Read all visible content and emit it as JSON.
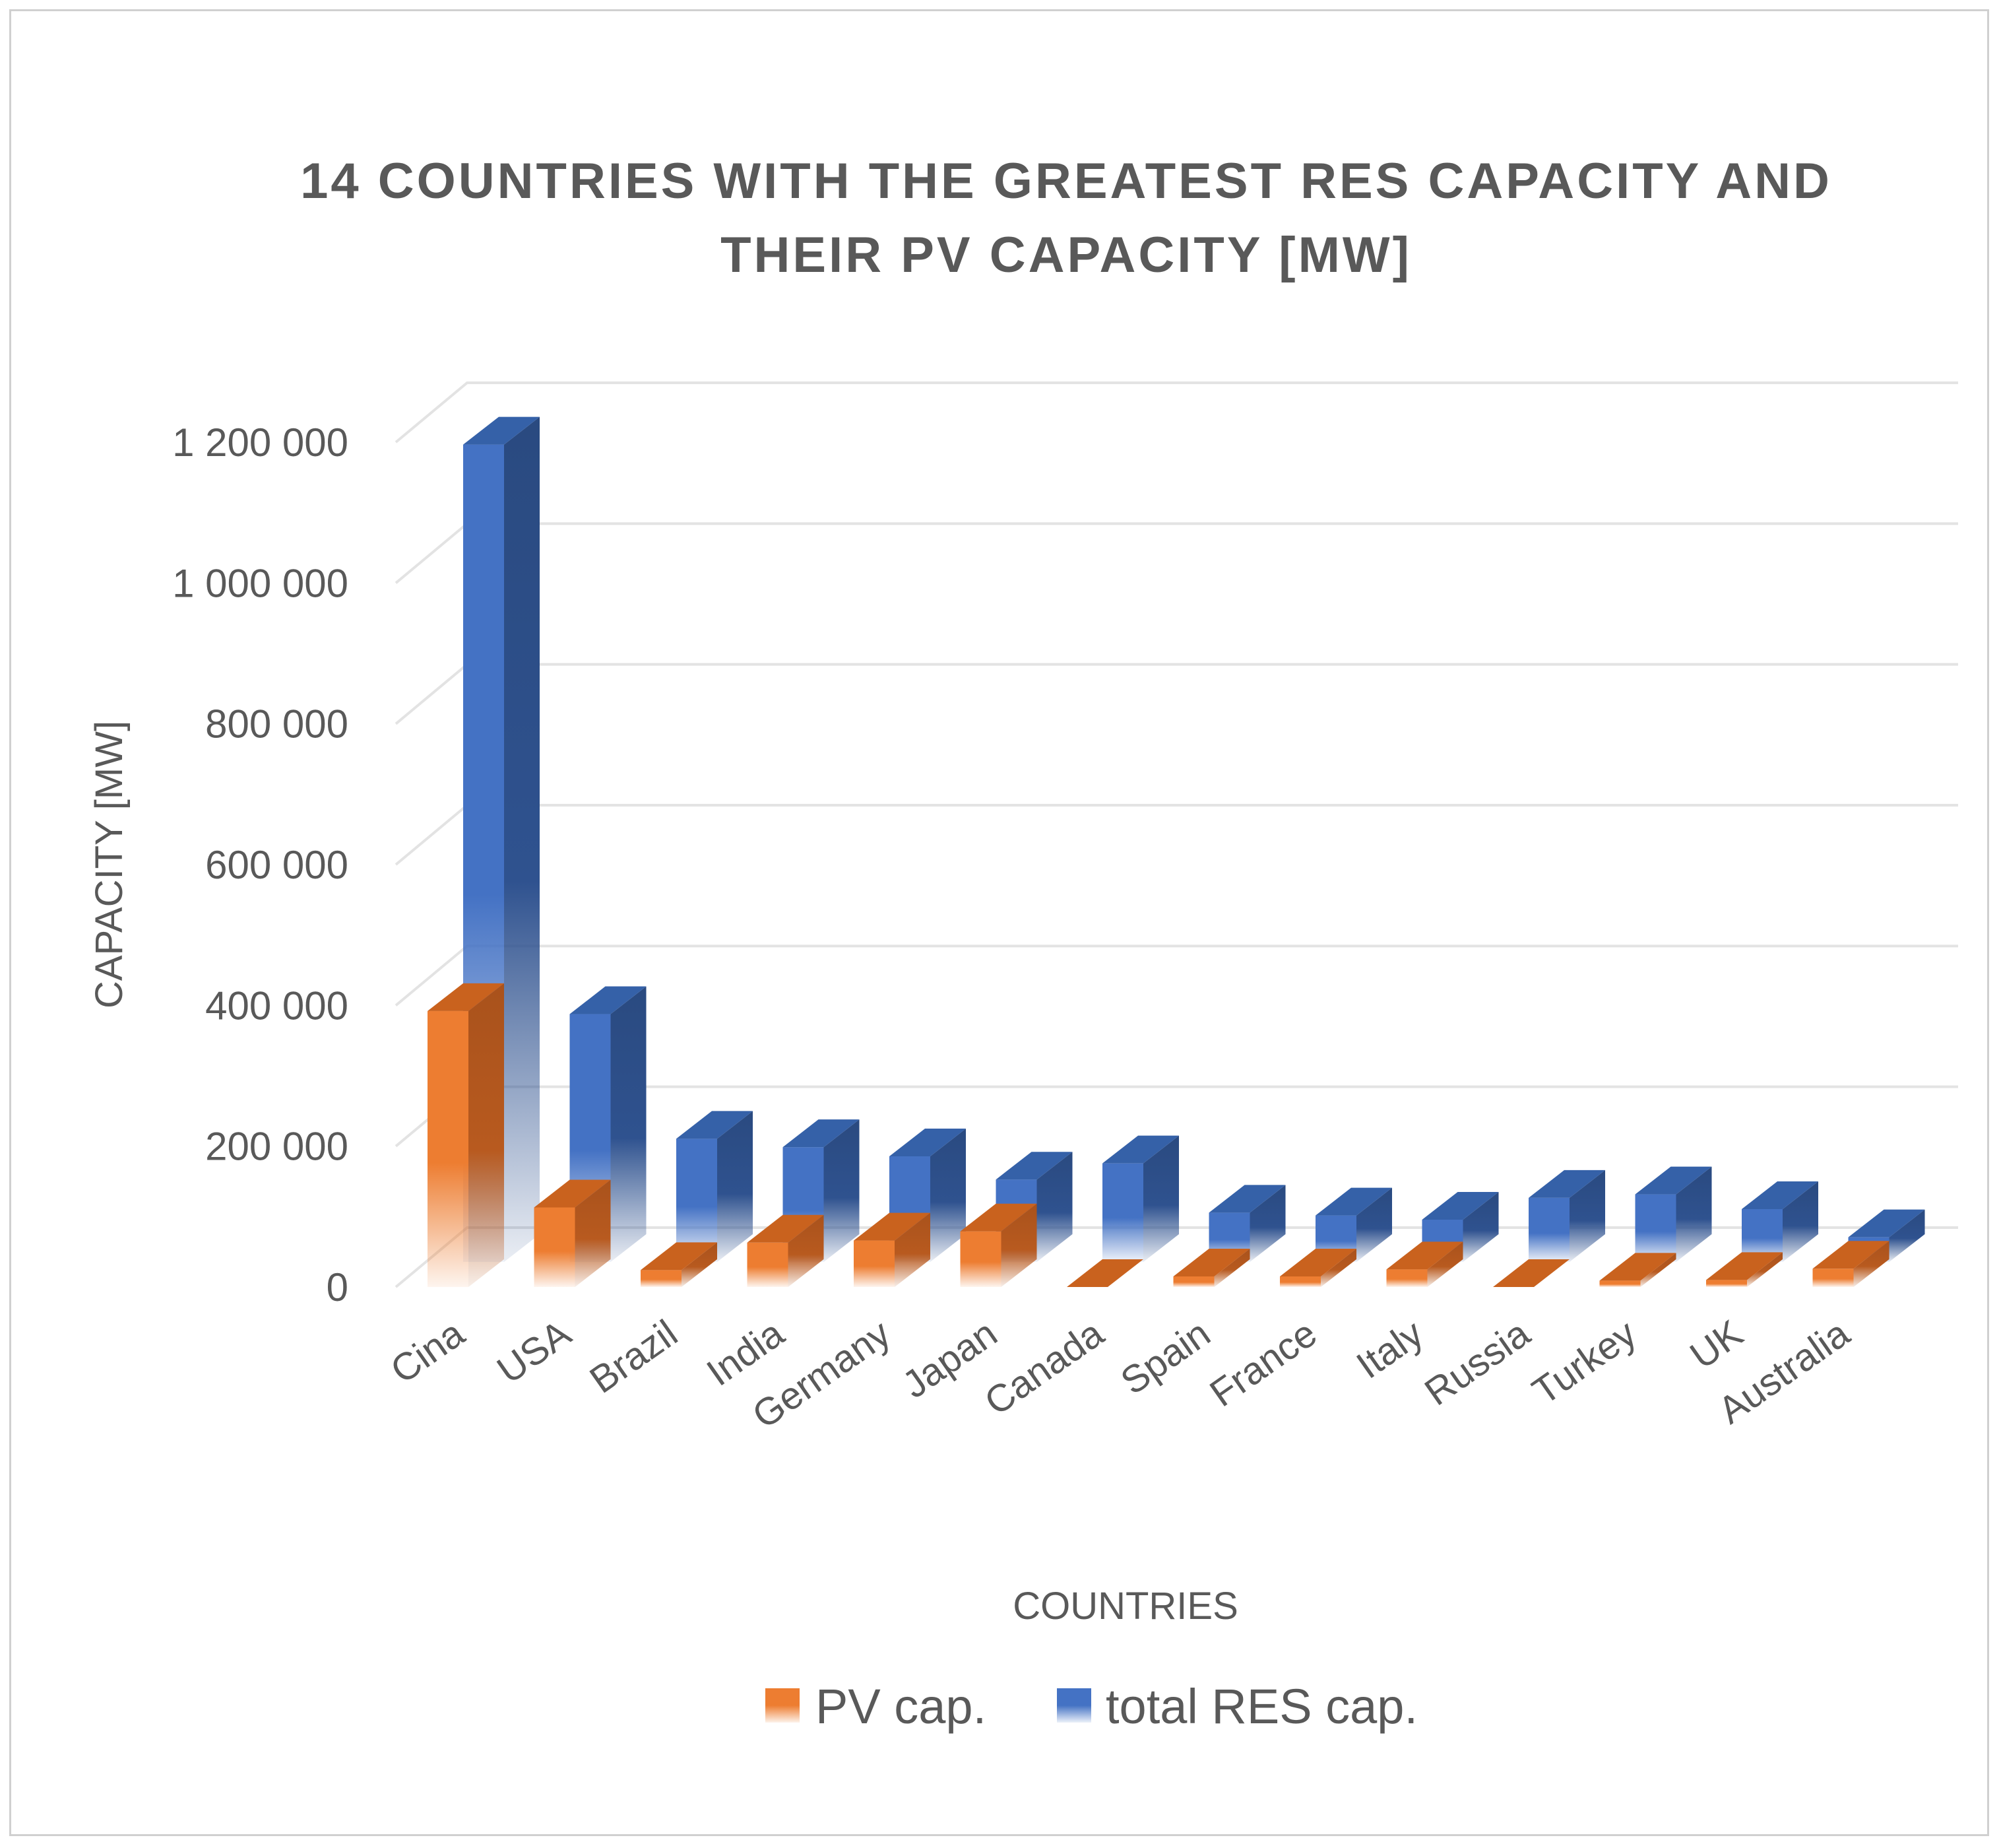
{
  "chart_data": {
    "type": "bar",
    "title_lines": [
      "14 COUNTRIES WITH THE GREATEST RES CAPACITY AND",
      "THEIR PV CAPACITY [MW]"
    ],
    "xlabel": "COUNTRIES",
    "ylabel": "CAPACITY [MW]",
    "ylim": [
      0,
      1200000
    ],
    "yticks": [
      0,
      200000,
      400000,
      600000,
      800000,
      1000000,
      1200000
    ],
    "ytick_labels": [
      "0",
      "200 000",
      "400 000",
      "600 000",
      "800 000",
      "1 000 000",
      "1 200 000"
    ],
    "categories": [
      "Cina",
      "USA",
      "Brazil",
      "India",
      "Germany",
      "Japan",
      "Canada",
      "Spain",
      "France",
      "Italy",
      "Russia",
      "Turkey",
      "UK",
      "Australia"
    ],
    "series": [
      {
        "name": "PV cap.",
        "color": "#ED7D31",
        "side_color": "#B85A1F",
        "top_color": "#C9621E",
        "values": [
          392000,
          113000,
          24000,
          63000,
          66000,
          79000,
          0,
          15000,
          15000,
          25000,
          0,
          9000,
          10000,
          26000
        ]
      },
      {
        "name": "total RES cap.",
        "color": "#4472C4",
        "side_color": "#2F528F",
        "top_color": "#3561A8",
        "values": [
          1161000,
          352000,
          175000,
          163000,
          150000,
          117000,
          140000,
          70000,
          66000,
          60000,
          91000,
          96000,
          75000,
          35000
        ]
      }
    ],
    "legend_position": "bottom"
  }
}
